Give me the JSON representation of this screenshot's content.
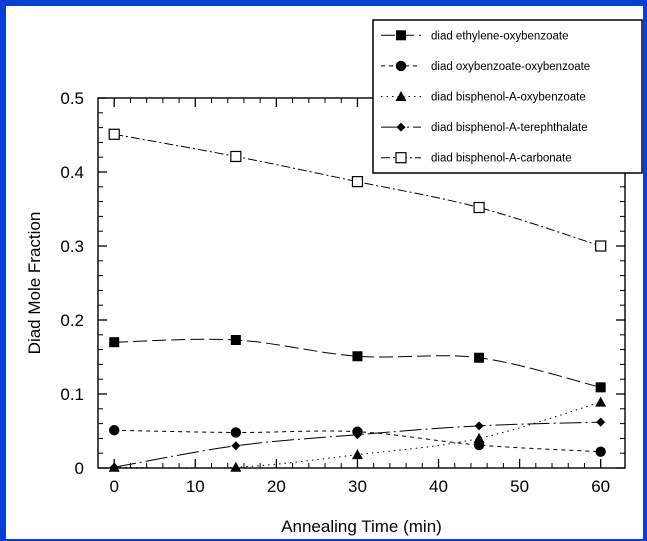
{
  "chart_data": {
    "type": "line",
    "title": "",
    "xlabel": "Annealing Time (min)",
    "ylabel": "Diad Mole Fraction",
    "xlim": [
      -2,
      63
    ],
    "ylim": [
      0,
      0.5
    ],
    "xticks": [
      0,
      10,
      20,
      30,
      40,
      50,
      60
    ],
    "yticks": [
      0,
      0.1,
      0.2,
      0.3,
      0.4,
      0.5
    ],
    "grid": false,
    "legend_position": "top-right",
    "series": [
      {
        "name": "diad ethylene-oxybenzoate",
        "marker": "filled-square",
        "dash": "long-dash",
        "x": [
          0,
          15,
          30,
          45,
          60
        ],
        "y": [
          0.17,
          0.173,
          0.151,
          0.149,
          0.109
        ]
      },
      {
        "name": "diad oxybenzoate-oxybenzoate",
        "marker": "filled-circle",
        "dash": "short-dash",
        "x": [
          0,
          15,
          30,
          45,
          60
        ],
        "y": [
          0.051,
          0.048,
          0.049,
          0.031,
          0.022
        ]
      },
      {
        "name": "diad bisphenol-A-oxybenzoate",
        "marker": "filled-triangle",
        "dash": "dot",
        "x": [
          0,
          15,
          30,
          45,
          60
        ],
        "y": [
          0.001,
          0.001,
          0.018,
          0.04,
          0.089
        ]
      },
      {
        "name": "diad bisphenol-A-terephthalate",
        "marker": "filled-diamond",
        "dash": "long-dash-dot",
        "x": [
          0,
          15,
          30,
          45,
          60
        ],
        "y": [
          0.001,
          0.03,
          0.045,
          0.057,
          0.062
        ]
      },
      {
        "name": "diad bisphenol-A-carbonate",
        "marker": "open-square",
        "dash": "dash-dot",
        "x": [
          0,
          15,
          30,
          45,
          60
        ],
        "y": [
          0.451,
          0.421,
          0.387,
          0.352,
          0.3
        ]
      }
    ]
  }
}
